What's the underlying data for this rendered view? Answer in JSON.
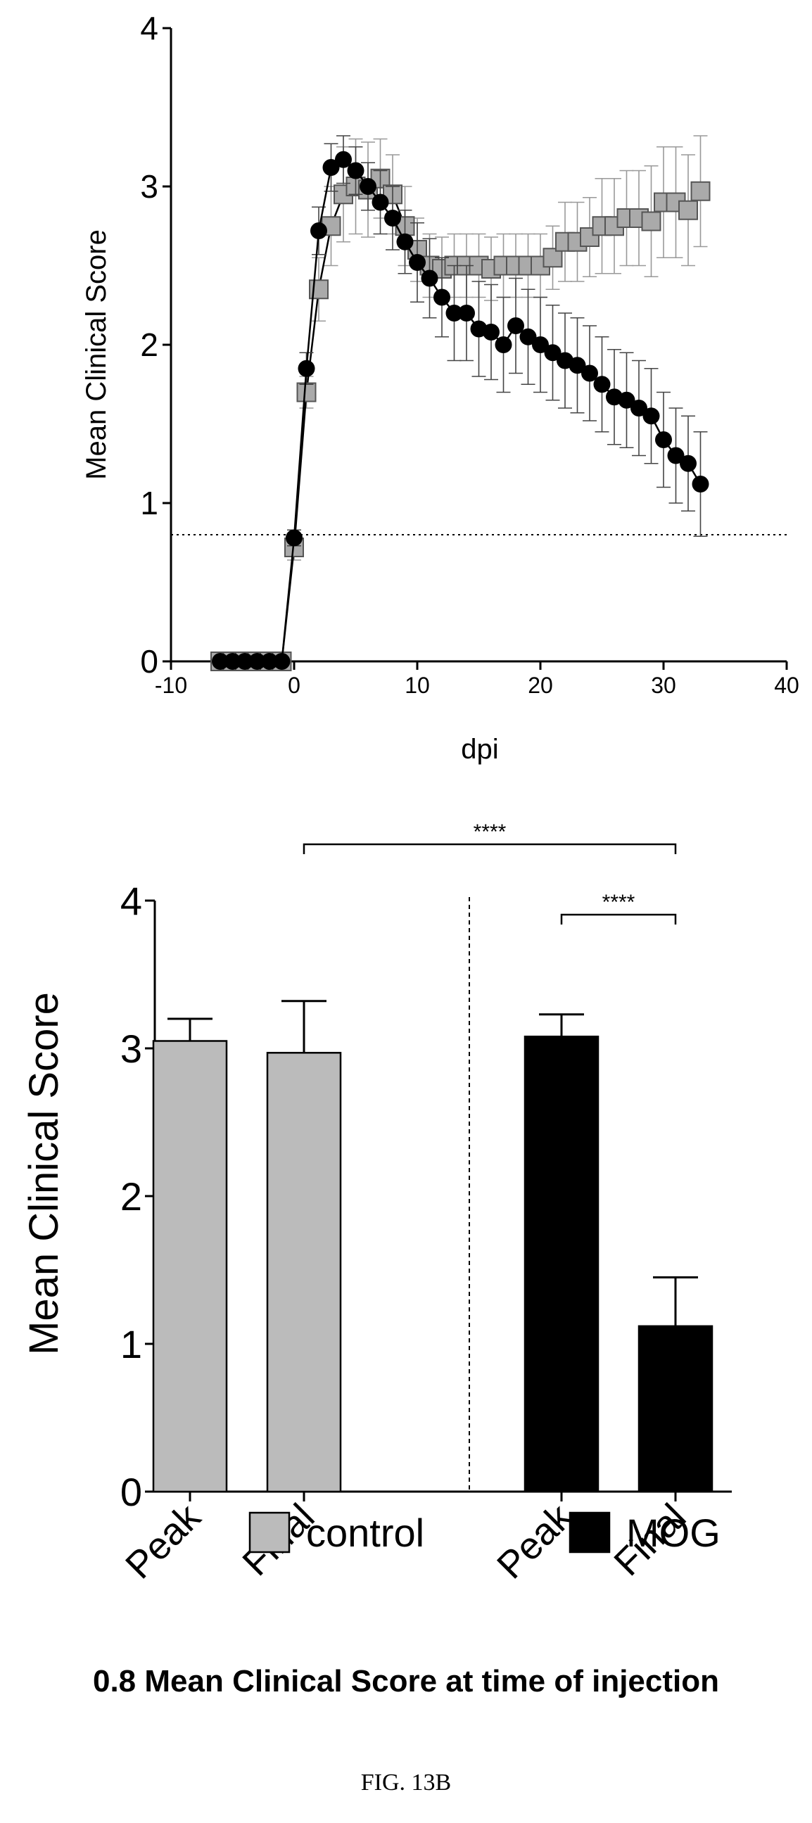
{
  "chart_data": [
    {
      "type": "line",
      "xlabel": "dpi",
      "ylabel": "Mean Clinical Score",
      "xlim": [
        -10,
        40
      ],
      "ylim": [
        0,
        4
      ],
      "xticks": [
        -10,
        0,
        10,
        20,
        30,
        40
      ],
      "yticks": [
        0,
        1,
        2,
        3,
        4
      ],
      "reference_line": {
        "y": 0.8,
        "style": "dotted"
      },
      "series": [
        {
          "name": "control",
          "marker": "square",
          "color": "#aaaaaa",
          "x": [
            -6,
            -5,
            -4,
            -3,
            -2,
            -1,
            0,
            1,
            2,
            3,
            4,
            5,
            6,
            7,
            8,
            9,
            10,
            11,
            12,
            13,
            14,
            15,
            16,
            17,
            18,
            19,
            20,
            21,
            22,
            23,
            24,
            25,
            26,
            27,
            28,
            29,
            30,
            31,
            32,
            33
          ],
          "y": [
            0,
            0,
            0,
            0,
            0,
            0,
            0.72,
            1.7,
            2.35,
            2.75,
            2.95,
            3.0,
            2.98,
            3.05,
            2.95,
            2.75,
            2.6,
            2.5,
            2.48,
            2.5,
            2.5,
            2.5,
            2.48,
            2.5,
            2.5,
            2.5,
            2.5,
            2.55,
            2.65,
            2.65,
            2.68,
            2.75,
            2.75,
            2.8,
            2.8,
            2.78,
            2.9,
            2.9,
            2.85,
            2.97
          ],
          "err": [
            0,
            0,
            0,
            0,
            0,
            0,
            0.08,
            0.1,
            0.2,
            0.25,
            0.3,
            0.3,
            0.3,
            0.25,
            0.25,
            0.25,
            0.2,
            0.2,
            0.2,
            0.2,
            0.2,
            0.2,
            0.2,
            0.2,
            0.2,
            0.2,
            0.2,
            0.2,
            0.25,
            0.25,
            0.25,
            0.3,
            0.3,
            0.3,
            0.3,
            0.35,
            0.35,
            0.35,
            0.35,
            0.35
          ]
        },
        {
          "name": "MOG",
          "marker": "circle",
          "color": "#000000",
          "x": [
            -6,
            -5,
            -4,
            -3,
            -2,
            -1,
            0,
            1,
            2,
            3,
            4,
            5,
            6,
            7,
            8,
            9,
            10,
            11,
            12,
            13,
            14,
            15,
            16,
            17,
            18,
            19,
            20,
            21,
            22,
            23,
            24,
            25,
            26,
            27,
            28,
            29,
            30,
            31,
            32,
            33
          ],
          "y": [
            0,
            0,
            0,
            0,
            0,
            0,
            0.78,
            1.85,
            2.72,
            3.12,
            3.17,
            3.1,
            3.0,
            2.9,
            2.8,
            2.65,
            2.52,
            2.42,
            2.3,
            2.2,
            2.2,
            2.1,
            2.08,
            2.0,
            2.12,
            2.05,
            2.0,
            1.95,
            1.9,
            1.87,
            1.82,
            1.75,
            1.67,
            1.65,
            1.6,
            1.55,
            1.4,
            1.3,
            1.25,
            1.12
          ],
          "err": [
            0,
            0,
            0,
            0,
            0,
            0,
            0.05,
            0.1,
            0.15,
            0.15,
            0.15,
            0.15,
            0.15,
            0.2,
            0.2,
            0.2,
            0.25,
            0.25,
            0.25,
            0.3,
            0.3,
            0.3,
            0.3,
            0.3,
            0.3,
            0.3,
            0.3,
            0.3,
            0.3,
            0.3,
            0.3,
            0.3,
            0.3,
            0.3,
            0.3,
            0.3,
            0.3,
            0.3,
            0.3,
            0.33
          ]
        }
      ]
    },
    {
      "type": "bar",
      "ylabel": "Mean Clinical Score",
      "ylim": [
        0,
        4
      ],
      "yticks": [
        0,
        1,
        2,
        3,
        4
      ],
      "categories": [
        "Peak",
        "Final",
        "Peak",
        "Final"
      ],
      "groups": [
        "control",
        "control",
        "MOG",
        "MOG"
      ],
      "values": [
        3.05,
        2.97,
        3.08,
        1.12
      ],
      "errors": [
        0.15,
        0.35,
        0.15,
        0.33
      ],
      "colors": {
        "control": "#bbbbbb",
        "MOG": "#000000"
      },
      "significance": [
        {
          "from": 1,
          "to": 3,
          "label": "****"
        },
        {
          "from": 2,
          "to": 3,
          "label": "****"
        }
      ],
      "legend": [
        {
          "label": "control",
          "color": "#bbbbbb"
        },
        {
          "label": "MOG",
          "color": "#000000"
        }
      ]
    }
  ],
  "footnote": "0.8 Mean Clinical Score at time of injection",
  "figure_label": "FIG. 13B"
}
